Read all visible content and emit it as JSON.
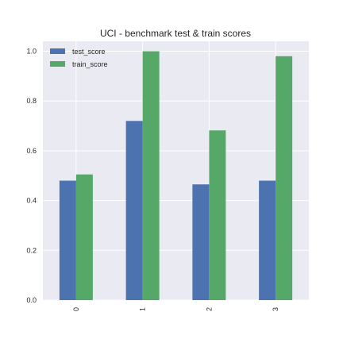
{
  "chart_data": {
    "type": "bar",
    "title": "UCI - benchmark test  & train scores",
    "xlabel": "",
    "ylabel": "",
    "categories": [
      "0",
      "1",
      "2",
      "3"
    ],
    "series": [
      {
        "name": "test_score",
        "values": [
          0.48,
          0.72,
          0.465,
          0.48
        ],
        "color": "#4c72b0"
      },
      {
        "name": "train_score",
        "values": [
          0.505,
          1.0,
          0.682,
          0.98
        ],
        "color": "#55a868"
      }
    ],
    "ylim": [
      0,
      1.04
    ],
    "yticks": [
      "0.0",
      "0.2",
      "0.4",
      "0.6",
      "0.8",
      "1.0"
    ],
    "grid": true,
    "legend_position": "top-left",
    "background": "#eaeaf2",
    "grid_color": "#ffffff"
  }
}
